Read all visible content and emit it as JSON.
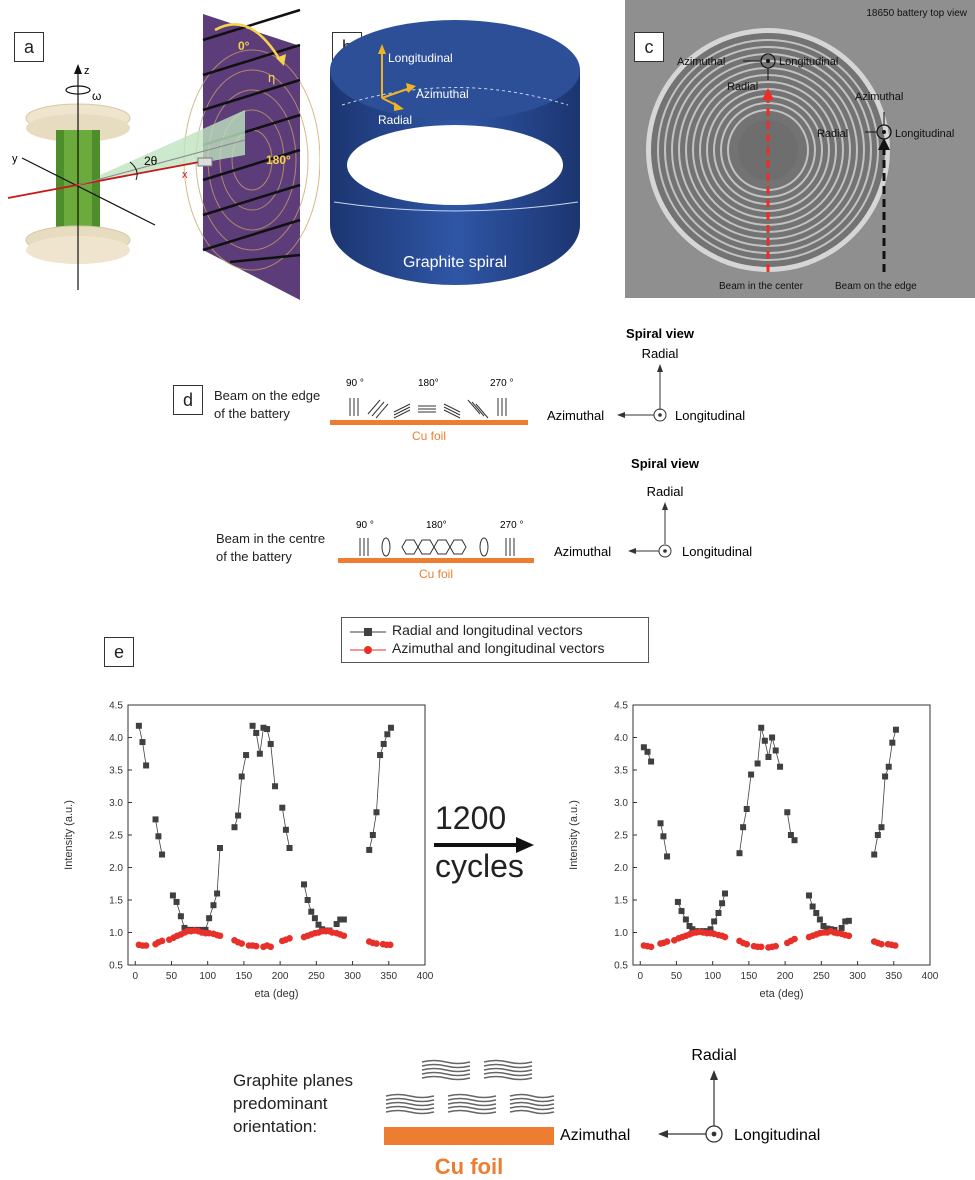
{
  "panels": {
    "a": {
      "label": "a",
      "axes": {
        "z": "z",
        "y": "y",
        "x": "x",
        "omega": "ω",
        "two_theta": "2θ",
        "eta": "η",
        "deg0": "0°",
        "deg180": "180°"
      }
    },
    "b": {
      "label": "b",
      "vectors": {
        "longitudinal": "Longitudinal",
        "azimuthal": "Azimuthal",
        "radial": "Radial"
      },
      "spiral": "Graphite spiral"
    },
    "c": {
      "label": "c",
      "title": "18650 battery top view",
      "azimuthal_top": "Azimuthal",
      "longitudinal_top": "Longitudinal",
      "radial_top": "Radial",
      "azimuthal_right": "Azimuthal",
      "radial_right": "Radial",
      "longitudinal_right": "Longitudinal",
      "beam_center": "Beam in the center",
      "beam_edge": "Beam on the edge"
    },
    "d": {
      "label": "d",
      "row1": {
        "desc1": "Beam on the edge",
        "desc2": "of the battery",
        "a90": "90 °",
        "a180": "180°",
        "a270": "270 °",
        "foil": "Cu foil",
        "view": "Spiral view",
        "radial": "Radial",
        "azimuthal": "Azimuthal",
        "longitudinal": "Longitudinal"
      },
      "row2": {
        "desc1": "Beam in the centre",
        "desc2": "of the battery",
        "a90": "90 °",
        "a180": "180°",
        "a270": "270 °",
        "foil": "Cu foil",
        "view": "Spiral view",
        "radial": "Radial",
        "azimuthal": "Azimuthal",
        "longitudinal": "Longitudinal"
      }
    },
    "e": {
      "label": "e",
      "arrow_top": "1200",
      "arrow_bottom": "cycles"
    },
    "bottom": {
      "desc1": "Graphite planes",
      "desc2": "predominant",
      "desc3": "orientation:",
      "foil": "Cu foil",
      "radial": "Radial",
      "azimuthal": "Azimuthal",
      "longitudinal": "Longitudinal"
    }
  },
  "colors": {
    "series1": "#404040",
    "series2": "#e8302a",
    "foil": "#ee7d31",
    "spiral": "#213f80"
  },
  "chart_data": [
    {
      "type": "scatter",
      "xlabel": "eta (deg)",
      "ylabel": "Intensity (a.u.)",
      "xlim": [
        -10,
        400
      ],
      "ylim": [
        0.5,
        4.5
      ],
      "xticks": [
        "0",
        "50",
        "100",
        "150",
        "200",
        "250",
        "300",
        "350",
        "400"
      ],
      "yticks": [
        "0.5",
        "1.0",
        "1.5",
        "2.0",
        "2.5",
        "3.0",
        "3.5",
        "4.0",
        "4.5"
      ],
      "legend_position": "top",
      "series": [
        {
          "name": "Radial and longitudinal vectors",
          "marker": "square",
          "color": "#404040",
          "x": [
            5,
            10,
            15,
            28,
            32,
            37,
            52,
            57,
            63,
            68,
            72,
            77,
            82,
            87,
            92,
            97,
            102,
            108,
            113,
            117,
            137,
            142,
            147,
            153,
            162,
            167,
            172,
            177,
            182,
            187,
            193,
            203,
            208,
            213,
            233,
            238,
            243,
            248,
            253,
            258,
            263,
            268,
            278,
            283,
            288,
            323,
            328,
            333,
            338,
            343,
            348,
            353
          ],
          "y": [
            4.18,
            3.93,
            3.57,
            2.74,
            2.48,
            2.2,
            1.57,
            1.47,
            1.25,
            1.07,
            1.04,
            1.04,
            1.04,
            1.04,
            1.04,
            1.04,
            1.22,
            1.42,
            1.6,
            2.3,
            2.62,
            2.8,
            3.4,
            3.73,
            4.18,
            4.07,
            3.75,
            4.15,
            4.13,
            3.9,
            3.25,
            2.92,
            2.58,
            2.3,
            1.74,
            1.5,
            1.32,
            1.22,
            1.12,
            1.05,
            1.03,
            1.03,
            1.13,
            1.2,
            1.2,
            2.27,
            2.5,
            2.85,
            3.73,
            3.9,
            4.05,
            4.15
          ]
        },
        {
          "name": "Azimuthal and longitudinal vectors",
          "marker": "circle",
          "color": "#e8302a",
          "x": [
            5,
            10,
            15,
            28,
            32,
            37,
            47,
            53,
            58,
            63,
            68,
            72,
            77,
            82,
            87,
            92,
            97,
            102,
            108,
            113,
            117,
            137,
            142,
            147,
            157,
            162,
            167,
            177,
            182,
            187,
            203,
            208,
            213,
            233,
            238,
            243,
            248,
            253,
            258,
            263,
            268,
            272,
            278,
            283,
            288,
            323,
            328,
            333,
            342,
            347,
            352
          ],
          "y": [
            0.81,
            0.8,
            0.8,
            0.82,
            0.85,
            0.87,
            0.89,
            0.92,
            0.95,
            0.97,
            1.0,
            1.02,
            1.02,
            1.03,
            1.02,
            1.0,
            0.99,
            0.99,
            0.98,
            0.96,
            0.95,
            0.88,
            0.85,
            0.83,
            0.8,
            0.8,
            0.79,
            0.78,
            0.8,
            0.78,
            0.87,
            0.89,
            0.91,
            0.93,
            0.95,
            0.97,
            0.99,
            1.0,
            1.02,
            1.02,
            1.02,
            1.0,
            0.99,
            0.97,
            0.95,
            0.86,
            0.84,
            0.83,
            0.82,
            0.81,
            0.81
          ]
        }
      ]
    },
    {
      "type": "scatter",
      "xlabel": "eta (deg)",
      "ylabel": "Intensity (a.u.)",
      "xlim": [
        -10,
        400
      ],
      "ylim": [
        0.5,
        4.5
      ],
      "xticks": [
        "0",
        "50",
        "100",
        "150",
        "200",
        "250",
        "300",
        "350",
        "400"
      ],
      "yticks": [
        "0.5",
        "1.0",
        "1.5",
        "2.0",
        "2.5",
        "3.0",
        "3.5",
        "4.0",
        "4.5"
      ],
      "series": [
        {
          "name": "Radial and longitudinal vectors",
          "marker": "square",
          "color": "#404040",
          "x": [
            5,
            10,
            15,
            28,
            32,
            37,
            52,
            57,
            63,
            68,
            72,
            77,
            82,
            87,
            92,
            97,
            102,
            108,
            113,
            117,
            137,
            142,
            147,
            153,
            162,
            167,
            172,
            177,
            182,
            187,
            193,
            203,
            208,
            213,
            233,
            238,
            243,
            248,
            253,
            258,
            263,
            268,
            278,
            283,
            288,
            323,
            328,
            333,
            338,
            343,
            348,
            353
          ],
          "y": [
            3.85,
            3.78,
            3.63,
            2.68,
            2.48,
            2.17,
            1.47,
            1.33,
            1.2,
            1.1,
            1.05,
            1.02,
            1.02,
            1.02,
            1.02,
            1.05,
            1.17,
            1.3,
            1.45,
            1.6,
            2.22,
            2.62,
            2.9,
            3.43,
            3.6,
            4.15,
            3.95,
            3.7,
            4.0,
            3.8,
            3.55,
            2.85,
            2.5,
            2.42,
            1.57,
            1.4,
            1.3,
            1.2,
            1.1,
            1.06,
            1.05,
            1.04,
            1.07,
            1.17,
            1.18,
            2.2,
            2.5,
            2.62,
            3.4,
            3.55,
            3.92,
            4.12
          ]
        },
        {
          "name": "Azimuthal and longitudinal vectors",
          "marker": "circle",
          "color": "#e8302a",
          "x": [
            5,
            10,
            15,
            28,
            32,
            37,
            47,
            53,
            58,
            63,
            68,
            72,
            77,
            82,
            87,
            92,
            97,
            102,
            108,
            113,
            117,
            137,
            142,
            147,
            157,
            162,
            167,
            177,
            182,
            187,
            203,
            208,
            213,
            233,
            238,
            243,
            248,
            253,
            258,
            263,
            268,
            272,
            278,
            283,
            288,
            323,
            328,
            333,
            342,
            347,
            352
          ],
          "y": [
            0.8,
            0.79,
            0.78,
            0.83,
            0.84,
            0.86,
            0.88,
            0.91,
            0.93,
            0.95,
            0.97,
            0.99,
            1.0,
            1.01,
            1.0,
            0.99,
            0.99,
            0.98,
            0.96,
            0.95,
            0.93,
            0.87,
            0.84,
            0.82,
            0.79,
            0.78,
            0.78,
            0.77,
            0.78,
            0.79,
            0.84,
            0.87,
            0.9,
            0.93,
            0.95,
            0.97,
            0.99,
            1.0,
            1.0,
            1.02,
            1.0,
            0.99,
            0.98,
            0.96,
            0.95,
            0.86,
            0.84,
            0.82,
            0.82,
            0.81,
            0.8
          ]
        }
      ]
    }
  ]
}
